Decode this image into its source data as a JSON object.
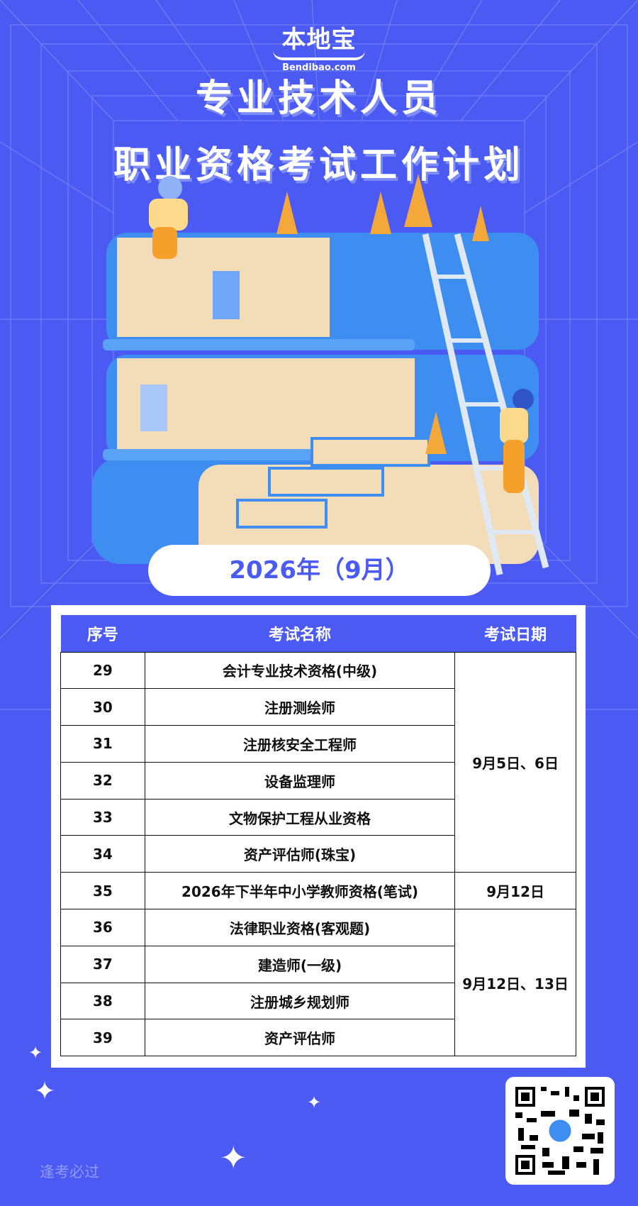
{
  "brand": {
    "logo_cn": "本地宝",
    "logo_en": "Bendibao.com"
  },
  "title": {
    "line1": "专业技术人员",
    "line2": "职业资格考试工作计划"
  },
  "period": "2026年（9月）",
  "table": {
    "headers": [
      "序号",
      "考试名称",
      "考试日期"
    ],
    "rows": [
      {
        "no": "29",
        "name": "会计专业技术资格(中级)"
      },
      {
        "no": "30",
        "name": "注册测绘师"
      },
      {
        "no": "31",
        "name": "注册核安全工程师"
      },
      {
        "no": "32",
        "name": "设备监理师"
      },
      {
        "no": "33",
        "name": "文物保护工程从业资格"
      },
      {
        "no": "34",
        "name": "资产评估师(珠宝)"
      },
      {
        "no": "35",
        "name": "2026年下半年中小学教师资格(笔试)"
      },
      {
        "no": "36",
        "name": "法律职业资格(客观题)"
      },
      {
        "no": "37",
        "name": "建造师(一级)"
      },
      {
        "no": "38",
        "name": "注册城乡规划师"
      },
      {
        "no": "39",
        "name": "资产评估师"
      }
    ],
    "dates": [
      "9月5日、6日",
      "9月12日",
      "9月12日、13日"
    ]
  },
  "footer": {
    "slogan": "逢考必过"
  },
  "colors": {
    "background": "#4a5af3",
    "accent": "#4a5af3",
    "book_blue": "#3d8ef0",
    "book_page": "#f3dcb8"
  }
}
